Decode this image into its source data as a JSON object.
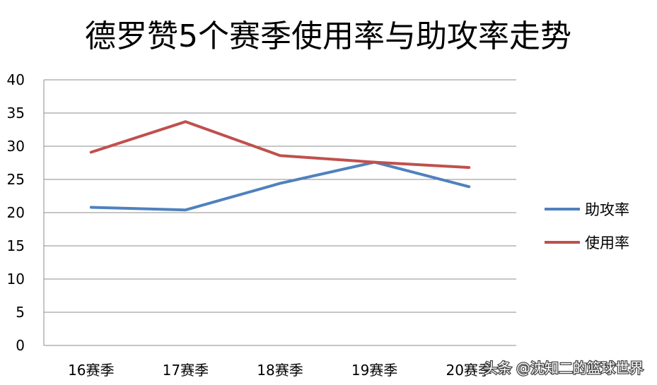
{
  "chart_data": {
    "type": "line",
    "title": "德罗赞5个赛季使用率与助攻率走势",
    "categories": [
      "16赛季",
      "17赛季",
      "18赛季",
      "19赛季",
      "20赛季"
    ],
    "series": [
      {
        "name": "助攻率",
        "color": "#4F81BD",
        "values": [
          20.8,
          20.4,
          24.4,
          27.6,
          23.9
        ]
      },
      {
        "name": "使用率",
        "color": "#C0504D",
        "values": [
          29.1,
          33.7,
          28.6,
          27.6,
          26.8
        ]
      }
    ],
    "yticks": [
      0,
      5,
      10,
      15,
      20,
      25,
      30,
      35,
      40
    ],
    "ylim": [
      0,
      40
    ],
    "grid": true,
    "legend_position": "right"
  },
  "watermark": "头条 @沈知二的篮球世界"
}
